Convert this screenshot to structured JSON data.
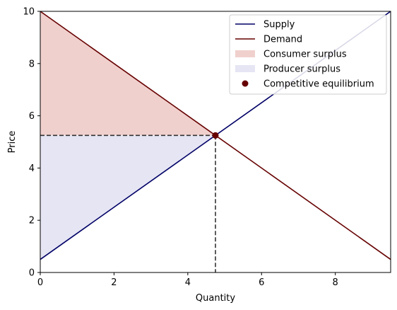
{
  "chart_data": {
    "type": "line",
    "xlabel": "Quantity",
    "ylabel": "Price",
    "xlim": [
      0,
      9.5
    ],
    "ylim": [
      0,
      10
    ],
    "xticks": [
      0,
      2,
      4,
      6,
      8
    ],
    "yticks": [
      0,
      2,
      4,
      6,
      8,
      10
    ],
    "grid": false,
    "legend_position": "top-right",
    "series": [
      {
        "name": "Supply",
        "kind": "line",
        "color": "#000066",
        "x": [
          0,
          9.5
        ],
        "y": [
          0.5,
          10
        ]
      },
      {
        "name": "Demand",
        "kind": "line",
        "color": "#660000",
        "x": [
          0,
          9.5
        ],
        "y": [
          10,
          0.5
        ]
      },
      {
        "name": "Consumer surplus",
        "kind": "area",
        "color": "#f0d0cd",
        "x": [
          0,
          4.75,
          0
        ],
        "y": [
          10,
          5.25,
          5.25
        ]
      },
      {
        "name": "Producer surplus",
        "kind": "area",
        "color": "#e5e5f4",
        "x": [
          0,
          4.75,
          0
        ],
        "y": [
          0.5,
          5.25,
          5.25
        ]
      },
      {
        "name": "Competitive equilibrium",
        "kind": "point",
        "color": "#660000",
        "x": [
          4.75
        ],
        "y": [
          5.25
        ]
      }
    ]
  }
}
